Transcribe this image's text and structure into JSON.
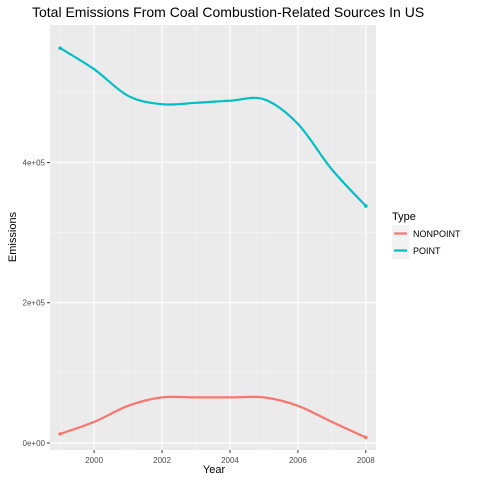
{
  "chart_data": {
    "type": "line",
    "title": "Total Emissions From Coal Combustion-Related Sources In US",
    "xlabel": "Year",
    "ylabel": "Emissions",
    "xlim": [
      1998.7,
      2008.3
    ],
    "ylim": [
      -10000,
      596000
    ],
    "x_ticks": [
      2000,
      2002,
      2004,
      2006,
      2008
    ],
    "x_tick_labels": [
      "2000",
      "2002",
      "2004",
      "2006",
      "2008"
    ],
    "y_ticks": [
      0,
      200000,
      400000
    ],
    "y_tick_labels": [
      "0e+00",
      "2e+05",
      "4e+05"
    ],
    "legend_title": "Type",
    "legend_position": "right",
    "grid": true,
    "series": [
      {
        "name": "NONPOINT",
        "color": "#F8766D",
        "x": [
          1999,
          2000,
          2001,
          2002,
          2003,
          2004,
          2005,
          2006,
          2007,
          2008
        ],
        "y": [
          13000,
          30000,
          53000,
          65000,
          65000,
          65000,
          65000,
          53000,
          30000,
          8000
        ]
      },
      {
        "name": "POINT",
        "color": "#00BFC4",
        "x": [
          1999,
          2000,
          2001,
          2002,
          2003,
          2004,
          2005,
          2006,
          2007,
          2008
        ],
        "y": [
          563000,
          533000,
          495000,
          483000,
          485000,
          488000,
          490000,
          455000,
          390000,
          338000
        ]
      }
    ]
  }
}
